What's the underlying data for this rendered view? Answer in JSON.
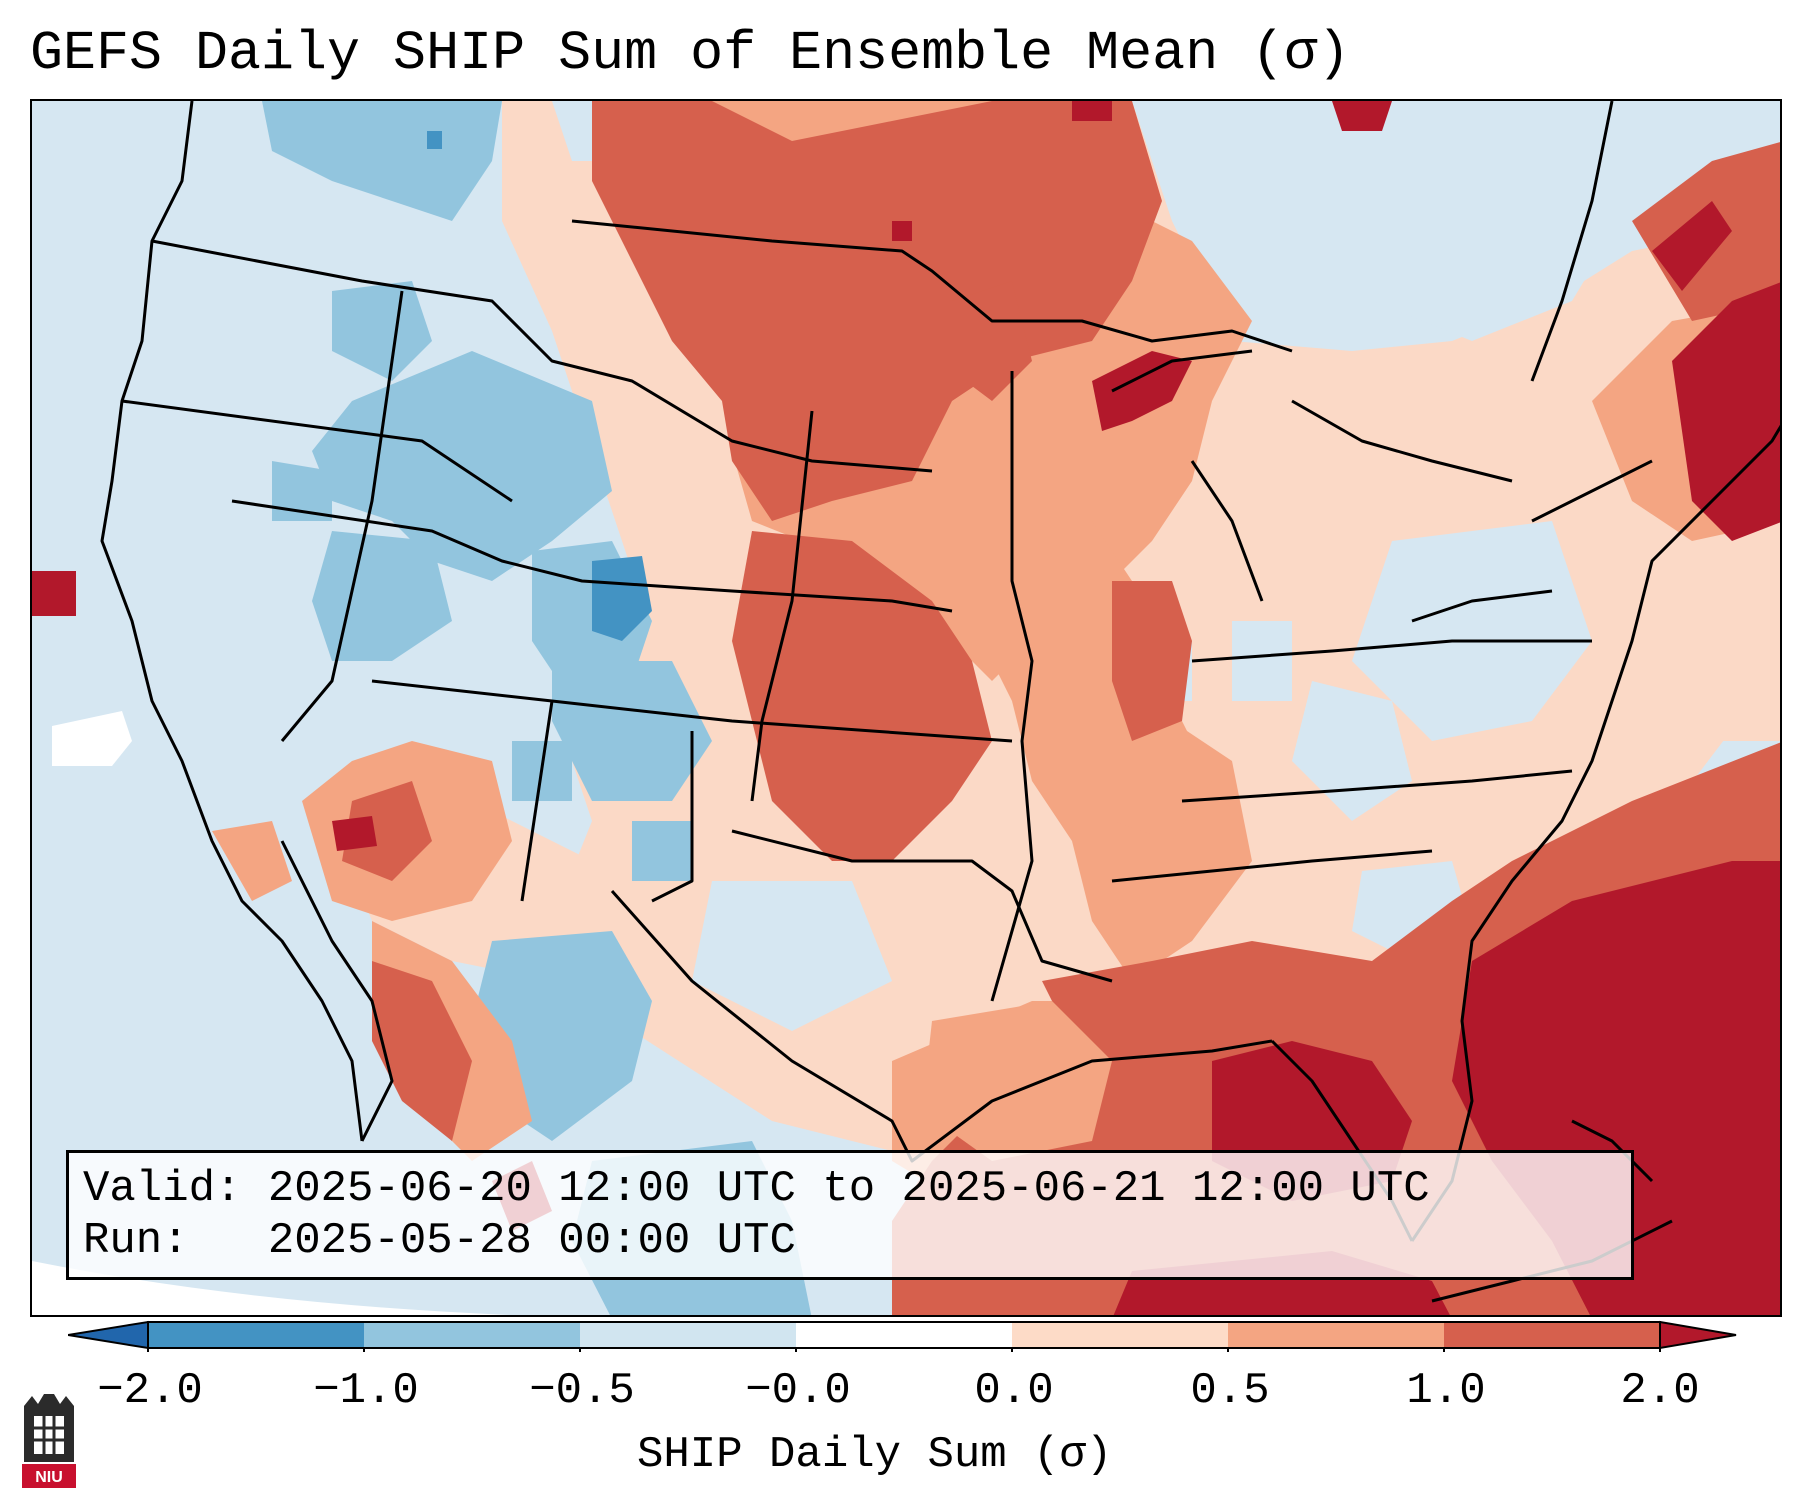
{
  "title": "GEFS Daily SHIP Sum of Ensemble Mean (σ)",
  "info": {
    "valid_label": "Valid:",
    "valid_value": "2025-06-20 12:00 UTC to 2025-06-21 12:00 UTC",
    "run_label": "Run:",
    "run_value": "2025-05-28 00:00 UTC"
  },
  "colorbar": {
    "label": "SHIP Daily Sum (σ)",
    "ticks": [
      "−2.0",
      "−1.0",
      "−0.5",
      "−0.0",
      "0.0",
      "0.5",
      "1.0",
      "2.0"
    ],
    "colors": [
      "#4393c3",
      "#92c5de",
      "#d1e5f0",
      "#fddbc7",
      "#f4a582",
      "#d6604d",
      "#b2182b"
    ],
    "extend_low_color": "#2166ac",
    "extend_high_color": "#b2182b"
  },
  "logo": {
    "text": "NIU"
  },
  "map": {
    "legend_classes": [
      {
        "range": "< -2.0",
        "color": "#2166ac"
      },
      {
        "range": "-2.0 to -1.0",
        "color": "#4393c3"
      },
      {
        "range": "-1.0 to -0.5",
        "color": "#92c5de"
      },
      {
        "range": "-0.5 to 0.0",
        "color": "#d1e5f0"
      },
      {
        "range": "0.0 to 0.5",
        "color": "#fddbc7"
      },
      {
        "range": "0.5 to 1.0",
        "color": "#f4a582"
      },
      {
        "range": "1.0 to 2.0",
        "color": "#d6604d"
      },
      {
        "range": "> 2.0",
        "color": "#b2182b"
      }
    ]
  }
}
